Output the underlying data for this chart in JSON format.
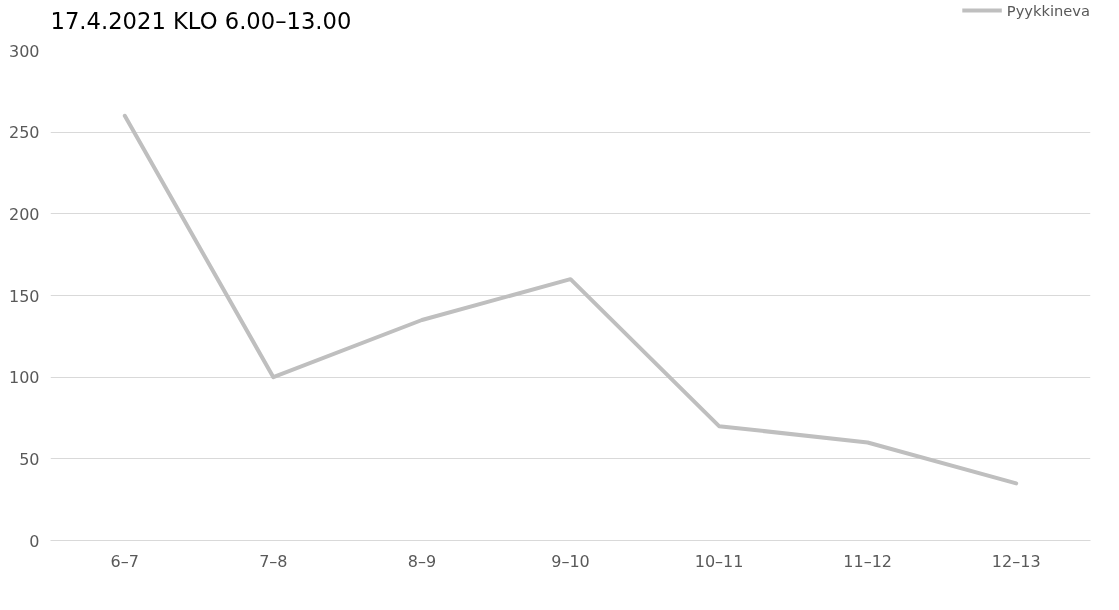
{
  "chart_data": {
    "type": "line",
    "title": "17.4.2021 KLO 6.00–13.00",
    "categories": [
      "6–7",
      "7–8",
      "8–9",
      "9–10",
      "10–11",
      "11–12",
      "12–13"
    ],
    "series": [
      {
        "name": "Pyykkineva",
        "color": "#bfbfbf",
        "values": [
          260,
          100,
          135,
          160,
          70,
          60,
          35
        ]
      }
    ],
    "ylim": [
      0,
      300
    ],
    "yticks": [
      0,
      50,
      100,
      150,
      200,
      250,
      300
    ],
    "grid": "y",
    "legend": "top right",
    "marker": "none",
    "line_style": "solid"
  }
}
